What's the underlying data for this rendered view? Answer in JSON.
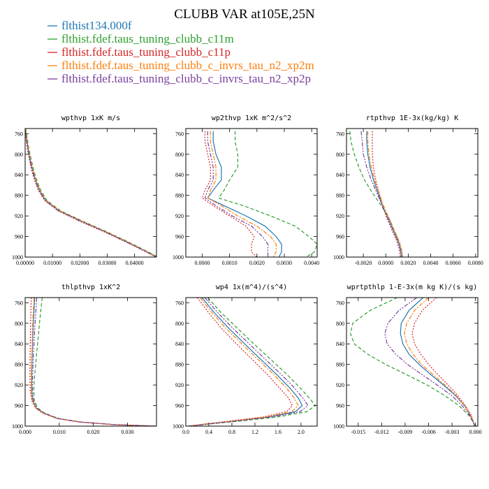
{
  "figure": {
    "title": "CLUBB VAR at105E,25N"
  },
  "colors": {
    "blue": "#1f77b4",
    "green": "#2ca02c",
    "red": "#d62728",
    "orange": "#ff7f0e",
    "purple": "#7b3f9e"
  },
  "chart_data": [
    {
      "type": "line",
      "title": "wpthvp  1xK m/s",
      "xlim": [
        0,
        0.048
      ],
      "ylim": [
        1000,
        750
      ],
      "xticks": [
        0.0,
        0.01,
        0.02,
        0.03,
        0.04
      ],
      "xtick_labels": [
        "0.00000",
        "0.01000",
        "0.02000",
        "0.03000",
        "0.04000"
      ],
      "yticks": [
        760,
        800,
        840,
        880,
        920,
        960,
        1000
      ],
      "y": [
        750,
        770,
        790,
        810,
        830,
        850,
        870,
        890,
        910,
        930,
        950,
        970,
        990,
        1000
      ],
      "series": [
        {
          "name": "flthist134.000f",
          "color": "blue",
          "dash": "",
          "values": [
            0.0,
            0.0005,
            0.0011,
            0.0018,
            0.0027,
            0.0038,
            0.0052,
            0.0075,
            0.0125,
            0.0205,
            0.029,
            0.037,
            0.0445,
            0.048
          ]
        },
        {
          "name": "flthist.fdef.taus_tuning_clubb_c11m",
          "color": "green",
          "dash": "5,3",
          "values": [
            0.0002,
            0.0008,
            0.0014,
            0.0022,
            0.0031,
            0.0042,
            0.0057,
            0.008,
            0.013,
            0.021,
            0.0295,
            0.0375,
            0.045,
            0.0485
          ]
        },
        {
          "name": "flthist.fdef.taus_tuning_clubb_c11p",
          "color": "red",
          "dash": "2,2",
          "values": [
            -0.0002,
            0.0003,
            0.0008,
            0.0015,
            0.0023,
            0.0034,
            0.0048,
            0.0071,
            0.012,
            0.0198,
            0.0285,
            0.0365,
            0.0442,
            0.0478
          ]
        },
        {
          "name": "flthist.fdef.taus_tuning_clubb_c_invrs_tau_n2_xp2m",
          "color": "orange",
          "dash": "6,2,2,2",
          "values": [
            0.0001,
            0.0006,
            0.0012,
            0.0019,
            0.0028,
            0.0039,
            0.0054,
            0.0077,
            0.0127,
            0.0207,
            0.0292,
            0.0372,
            0.0447,
            0.0481
          ]
        },
        {
          "name": "flthist.fdef.taus_tuning_clubb_c_invrs_tau_n2_xp2p",
          "color": "purple",
          "dash": "6,2,2,2,2,2",
          "values": [
            -0.0001,
            0.0004,
            0.001,
            0.0017,
            0.0025,
            0.0036,
            0.005,
            0.0073,
            0.0122,
            0.0201,
            0.0288,
            0.0368,
            0.0444,
            0.0479
          ]
        }
      ]
    },
    {
      "type": "line",
      "title": "wp2thvp  1xK m^2/s^2",
      "xlim": [
        -0.0006,
        0.0042
      ],
      "ylim": [
        1000,
        750
      ],
      "xticks": [
        0.0,
        0.001,
        0.002,
        0.003,
        0.004
      ],
      "xtick_labels": [
        "0.0000",
        "0.0010",
        "0.0020",
        "0.0030",
        "0.0040"
      ],
      "yticks": [
        760,
        800,
        840,
        880,
        920,
        960,
        1000
      ],
      "y": [
        755,
        775,
        800,
        825,
        850,
        870,
        885,
        900,
        920,
        940,
        960,
        975,
        990,
        1000
      ],
      "series": [
        {
          "name": "flthist134.000f",
          "color": "blue",
          "dash": "",
          "values": [
            0.0004,
            0.0004,
            0.0005,
            0.0007,
            0.0007,
            0.0004,
            0.0002,
            0.0008,
            0.0016,
            0.0023,
            0.0027,
            0.0029,
            0.0029,
            0.0028
          ]
        },
        {
          "name": "flthist.fdef.taus_tuning_clubb_c11m",
          "color": "green",
          "dash": "5,3",
          "values": [
            0.0012,
            0.0012,
            0.0013,
            0.0013,
            0.001,
            0.0008,
            0.0006,
            0.0015,
            0.0025,
            0.0034,
            0.0039,
            0.0042,
            0.0041,
            0.0038
          ]
        },
        {
          "name": "flthist.fdef.taus_tuning_clubb_c11p",
          "color": "red",
          "dash": "2,2",
          "values": [
            0.0001,
            0.0001,
            0.0002,
            0.0003,
            0.0003,
            0.0001,
            0.0,
            0.0004,
            0.001,
            0.0016,
            0.0019,
            0.0018,
            0.0018,
            0.002
          ]
        },
        {
          "name": "flthist.fdef.taus_tuning_clubb_c_invrs_tau_n2_xp2m",
          "color": "orange",
          "dash": "6,2,2,2",
          "values": [
            0.0003,
            0.0003,
            0.0004,
            0.0005,
            0.0005,
            0.0003,
            0.0002,
            0.0007,
            0.0013,
            0.002,
            0.0025,
            0.0027,
            0.0027,
            0.0026
          ]
        },
        {
          "name": "flthist.fdef.taus_tuning_clubb_c_invrs_tau_n2_xp2p",
          "color": "purple",
          "dash": "6,2,2,2,2,2",
          "values": [
            0.0002,
            0.0002,
            0.0003,
            0.0004,
            0.0004,
            0.0002,
            0.0001,
            0.0005,
            0.0011,
            0.0018,
            0.0022,
            0.0024,
            0.0024,
            0.0024
          ]
        }
      ]
    },
    {
      "type": "line",
      "title": "rtpthvp  1E-3x(kg/kg) K",
      "xlim": [
        -0.0035,
        0.0082
      ],
      "ylim": [
        1000,
        750
      ],
      "xticks": [
        -0.002,
        0.0,
        0.002,
        0.004,
        0.006,
        0.008
      ],
      "xtick_labels": [
        "-0.0020",
        "0.0000",
        "0.0020",
        "0.0040",
        "0.0060",
        "0.0080"
      ],
      "yticks": [
        760,
        800,
        840,
        880,
        920,
        960,
        1000
      ],
      "y": [
        755,
        775,
        800,
        825,
        850,
        875,
        900,
        925,
        950,
        970,
        985,
        1000
      ],
      "series": [
        {
          "name": "flthist134.000f",
          "color": "blue",
          "dash": "",
          "values": [
            -0.0017,
            -0.0017,
            -0.0016,
            -0.0014,
            -0.0011,
            -0.0007,
            -0.0003,
            0.0002,
            0.0007,
            0.0011,
            0.0013,
            0.0014
          ]
        },
        {
          "name": "flthist.fdef.taus_tuning_clubb_c11m",
          "color": "green",
          "dash": "5,3",
          "values": [
            -0.0032,
            -0.0031,
            -0.0028,
            -0.0024,
            -0.0019,
            -0.0012,
            -0.0004,
            0.0003,
            0.0008,
            0.0012,
            0.0014,
            0.0015
          ]
        },
        {
          "name": "flthist.fdef.taus_tuning_clubb_c11p",
          "color": "red",
          "dash": "2,2",
          "values": [
            -0.0012,
            -0.0012,
            -0.0012,
            -0.0011,
            -0.0009,
            -0.0006,
            -0.0003,
            0.0001,
            0.0006,
            0.001,
            0.0012,
            0.0013
          ]
        },
        {
          "name": "flthist.fdef.taus_tuning_clubb_c_invrs_tau_n2_xp2m",
          "color": "orange",
          "dash": "6,2,2,2",
          "values": [
            -0.0016,
            -0.0016,
            -0.0015,
            -0.0013,
            -0.001,
            -0.0006,
            -0.0002,
            0.0003,
            0.0008,
            0.0012,
            0.0014,
            0.0015
          ]
        },
        {
          "name": "flthist.fdef.taus_tuning_clubb_c_invrs_tau_n2_xp2p",
          "color": "purple",
          "dash": "6,2,2,2,2,2",
          "values": [
            -0.0022,
            -0.0021,
            -0.002,
            -0.0017,
            -0.0013,
            -0.0008,
            -0.0003,
            0.0002,
            0.0007,
            0.0011,
            0.0013,
            0.0014
          ]
        }
      ]
    },
    {
      "type": "line",
      "title": "thlpthvp  1xK^2",
      "xlim": [
        0,
        0.0385
      ],
      "ylim": [
        1000,
        750
      ],
      "xticks": [
        0.0,
        0.01,
        0.02,
        0.03
      ],
      "xtick_labels": [
        "0.000",
        "0.010",
        "0.020",
        "0.030"
      ],
      "yticks": [
        760,
        800,
        840,
        880,
        920,
        960,
        1000
      ],
      "y": [
        750,
        800,
        850,
        900,
        930,
        950,
        965,
        975,
        985,
        992,
        997,
        1000
      ],
      "series": [
        {
          "name": "flthist134.000f",
          "color": "blue",
          "dash": "",
          "values": [
            0.0028,
            0.0024,
            0.0021,
            0.0019,
            0.0019,
            0.0022,
            0.0033,
            0.0055,
            0.0095,
            0.016,
            0.026,
            0.038
          ]
        },
        {
          "name": "flthist.fdef.taus_tuning_clubb_c11m",
          "color": "green",
          "dash": "5,3",
          "values": [
            0.005,
            0.0042,
            0.0035,
            0.0028,
            0.0025,
            0.0027,
            0.0037,
            0.0058,
            0.0098,
            0.0163,
            0.0263,
            0.0385
          ]
        },
        {
          "name": "flthist.fdef.taus_tuning_clubb_c11p",
          "color": "red",
          "dash": "2,2",
          "values": [
            0.0018,
            0.0016,
            0.0015,
            0.0014,
            0.0015,
            0.0019,
            0.003,
            0.0052,
            0.0092,
            0.0157,
            0.0257,
            0.0375
          ]
        },
        {
          "name": "flthist.fdef.taus_tuning_clubb_c_invrs_tau_n2_xp2m",
          "color": "orange",
          "dash": "6,2,2,2",
          "values": [
            0.0026,
            0.0022,
            0.002,
            0.0018,
            0.0018,
            0.0021,
            0.0032,
            0.0054,
            0.0094,
            0.0159,
            0.0259,
            0.0378
          ]
        },
        {
          "name": "flthist.fdef.taus_tuning_clubb_c_invrs_tau_n2_xp2p",
          "color": "purple",
          "dash": "6,2,2,2,2,2",
          "values": [
            0.0034,
            0.0029,
            0.0025,
            0.0022,
            0.0021,
            0.0024,
            0.0034,
            0.0056,
            0.0096,
            0.0161,
            0.0261,
            0.0382
          ]
        }
      ]
    },
    {
      "type": "line",
      "title": "wp4  1x(m^4)/(s^4)",
      "xlim": [
        0,
        2.28
      ],
      "ylim": [
        1000,
        750
      ],
      "xticks": [
        0.0,
        0.4,
        0.8,
        1.2,
        1.6,
        2.0
      ],
      "xtick_labels": [
        "0.0",
        "0.4",
        "0.8",
        "1.2",
        "1.6",
        "2.0"
      ],
      "yticks": [
        760,
        800,
        840,
        880,
        920,
        960,
        1000
      ],
      "y": [
        750,
        780,
        810,
        840,
        870,
        900,
        925,
        945,
        960,
        972,
        982,
        990,
        996,
        1000
      ],
      "series": [
        {
          "name": "flthist134.000f",
          "color": "blue",
          "dash": "",
          "values": [
            0.28,
            0.5,
            0.75,
            1.02,
            1.3,
            1.58,
            1.8,
            1.95,
            2.02,
            1.9,
            1.45,
            0.85,
            0.35,
            0.05
          ]
        },
        {
          "name": "flthist.fdef.taus_tuning_clubb_c11m",
          "color": "green",
          "dash": "5,3",
          "values": [
            0.38,
            0.62,
            0.9,
            1.18,
            1.47,
            1.76,
            1.98,
            2.14,
            2.25,
            2.1,
            1.6,
            0.95,
            0.4,
            0.06
          ]
        },
        {
          "name": "flthist.fdef.taus_tuning_clubb_c11p",
          "color": "red",
          "dash": "2,2",
          "values": [
            0.2,
            0.4,
            0.62,
            0.88,
            1.15,
            1.42,
            1.62,
            1.78,
            1.85,
            1.75,
            1.35,
            0.78,
            0.32,
            0.04
          ]
        },
        {
          "name": "flthist.fdef.taus_tuning_clubb_c_invrs_tau_n2_xp2m",
          "color": "orange",
          "dash": "6,2,2,2",
          "values": [
            0.25,
            0.46,
            0.7,
            0.97,
            1.25,
            1.53,
            1.74,
            1.88,
            1.95,
            1.84,
            1.4,
            0.82,
            0.33,
            0.05
          ]
        },
        {
          "name": "flthist.fdef.taus_tuning_clubb_c_invrs_tau_n2_xp2p",
          "color": "purple",
          "dash": "6,2,2,2,2,2",
          "values": [
            0.33,
            0.56,
            0.82,
            1.1,
            1.38,
            1.66,
            1.88,
            2.03,
            2.12,
            1.98,
            1.5,
            0.88,
            0.36,
            0.05
          ]
        }
      ]
    },
    {
      "type": "line",
      "title": "wprtpthlp  1-E-3x(m kg K)/(s kg)",
      "xlim": [
        -0.0165,
        0.0003
      ],
      "ylim": [
        1000,
        750
      ],
      "xticks": [
        -0.015,
        -0.012,
        -0.009,
        -0.006,
        -0.003,
        0.0
      ],
      "xtick_labels": [
        "-0.015",
        "-0.012",
        "-0.009",
        "-0.006",
        "-0.003",
        "0.000"
      ],
      "yticks": [
        760,
        800,
        840,
        880,
        920,
        960,
        1000
      ],
      "y": [
        750,
        775,
        800,
        820,
        840,
        860,
        880,
        900,
        920,
        940,
        960,
        980,
        995,
        1000
      ],
      "series": [
        {
          "name": "flthist134.000f",
          "color": "blue",
          "dash": "",
          "values": [
            -0.0067,
            -0.0085,
            -0.0095,
            -0.0096,
            -0.0093,
            -0.0085,
            -0.0072,
            -0.0057,
            -0.0041,
            -0.0026,
            -0.0014,
            -0.0006,
            -0.0002,
            -0.0001
          ]
        },
        {
          "name": "flthist.fdef.taus_tuning_clubb_c11m",
          "color": "green",
          "dash": "5,3",
          "values": [
            -0.01,
            -0.0135,
            -0.0157,
            -0.016,
            -0.0155,
            -0.0138,
            -0.0115,
            -0.0088,
            -0.0062,
            -0.004,
            -0.0021,
            -0.0008,
            -0.0002,
            0.0
          ]
        },
        {
          "name": "flthist.fdef.taus_tuning_clubb_c11p",
          "color": "red",
          "dash": "2,2",
          "values": [
            -0.005,
            -0.0068,
            -0.0078,
            -0.0081,
            -0.0078,
            -0.007,
            -0.006,
            -0.0048,
            -0.0035,
            -0.0023,
            -0.0013,
            -0.0005,
            -0.0002,
            -0.0001
          ]
        },
        {
          "name": "flthist.fdef.taus_tuning_clubb_c_invrs_tau_n2_xp2m",
          "color": "orange",
          "dash": "6,2,2,2",
          "values": [
            -0.006,
            -0.0078,
            -0.0088,
            -0.0091,
            -0.0088,
            -0.008,
            -0.0069,
            -0.0054,
            -0.0039,
            -0.0025,
            -0.0014,
            -0.0006,
            -0.0002,
            -0.0001
          ]
        },
        {
          "name": "flthist.fdef.taus_tuning_clubb_c_invrs_tau_n2_xp2p",
          "color": "purple",
          "dash": "6,2,2,2,2,2",
          "values": [
            -0.0075,
            -0.0098,
            -0.0112,
            -0.0116,
            -0.0113,
            -0.0102,
            -0.0087,
            -0.0068,
            -0.0049,
            -0.0031,
            -0.0017,
            -0.0007,
            -0.0002,
            -0.0001
          ]
        }
      ]
    }
  ]
}
